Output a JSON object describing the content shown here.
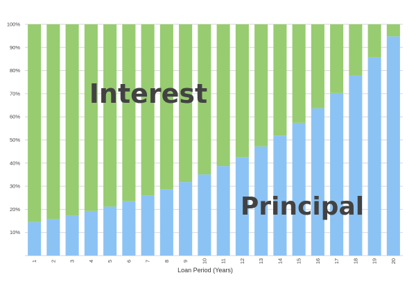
{
  "chart_data": {
    "type": "bar",
    "stacked": true,
    "normalized": true,
    "categories": [
      "1",
      "2",
      "3",
      "4",
      "5",
      "6",
      "7",
      "8",
      "9",
      "10",
      "11",
      "12",
      "13",
      "14",
      "15",
      "16",
      "17",
      "18",
      "19",
      "20"
    ],
    "series": [
      {
        "name": "Principal",
        "color": "#8cc3f5",
        "values": [
          14.5,
          15.8,
          17.3,
          19.3,
          21.2,
          23.5,
          25.9,
          28.6,
          31.8,
          35.1,
          38.7,
          42.6,
          47.2,
          51.9,
          57.4,
          63.7,
          70.3,
          77.8,
          85.7,
          94.8
        ]
      },
      {
        "name": "Interest",
        "color": "#98cc70",
        "values": [
          85.5,
          84.2,
          82.7,
          80.7,
          78.8,
          76.5,
          74.1,
          71.4,
          68.2,
          64.9,
          61.3,
          57.4,
          52.8,
          48.1,
          42.6,
          36.3,
          29.7,
          22.2,
          14.3,
          5.2
        ]
      }
    ],
    "xlabel": "Loan Period (Years)",
    "ylabel": "",
    "ylim": [
      0,
      100
    ],
    "yticks": [
      "10%",
      "20%",
      "30%",
      "40%",
      "50%",
      "60%",
      "70%",
      "80%",
      "90%",
      "100%"
    ],
    "grid": true,
    "annotations": [
      "Interest",
      "Principal"
    ]
  }
}
